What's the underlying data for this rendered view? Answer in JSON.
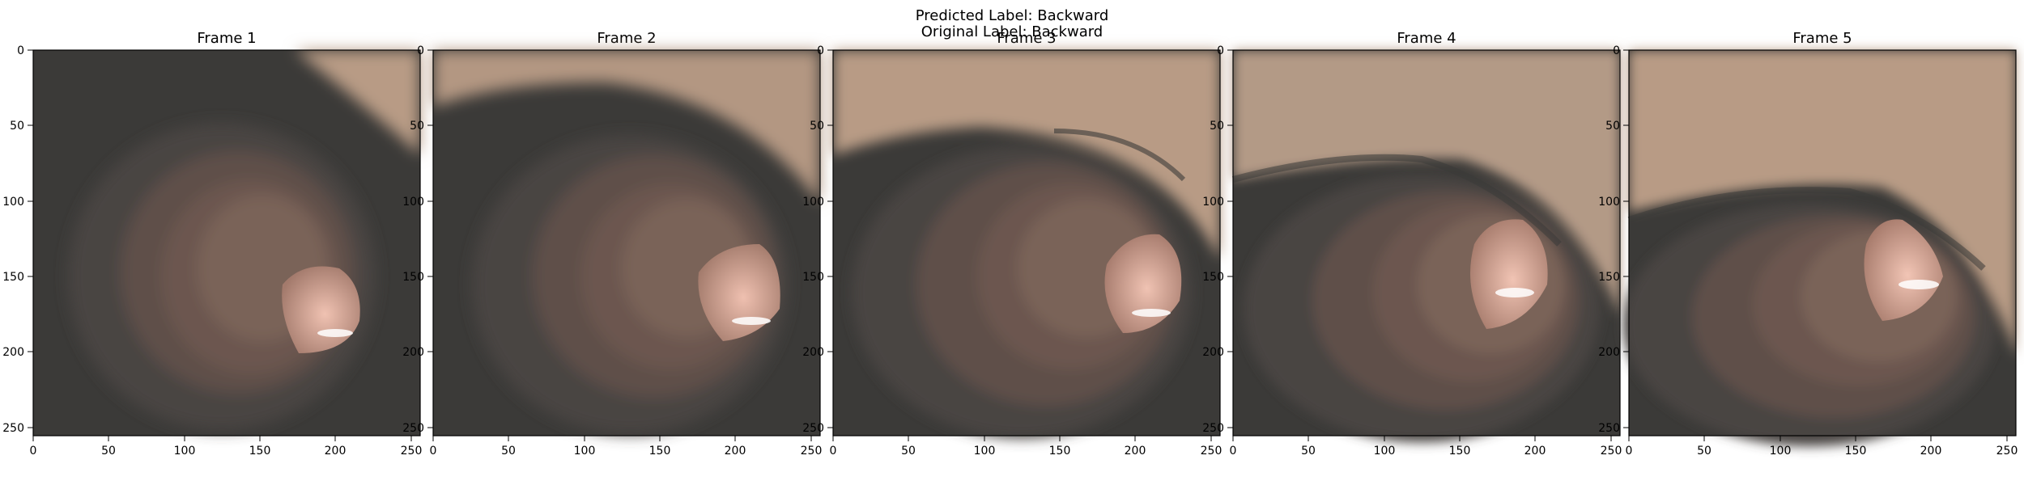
{
  "figure": {
    "predicted_label": "Predicted Label: Backward",
    "original_label": "Original Label: Backward"
  },
  "axis_ticks": {
    "x": [
      "0",
      "50",
      "100",
      "150",
      "200",
      "250"
    ],
    "y": [
      "0",
      "50",
      "100",
      "150",
      "200",
      "250"
    ]
  },
  "frames": [
    {
      "title": "Frame 1"
    },
    {
      "title": "Frame 2"
    },
    {
      "title": "Frame 3"
    },
    {
      "title": "Frame 4"
    },
    {
      "title": "Frame 5"
    }
  ],
  "colors": {
    "wall_dark": "#3b3a38",
    "mucosa": "#7a6358",
    "wall_light": "#b89b85",
    "fold": "#c79a8e",
    "highlight": "#f2c2b3"
  }
}
